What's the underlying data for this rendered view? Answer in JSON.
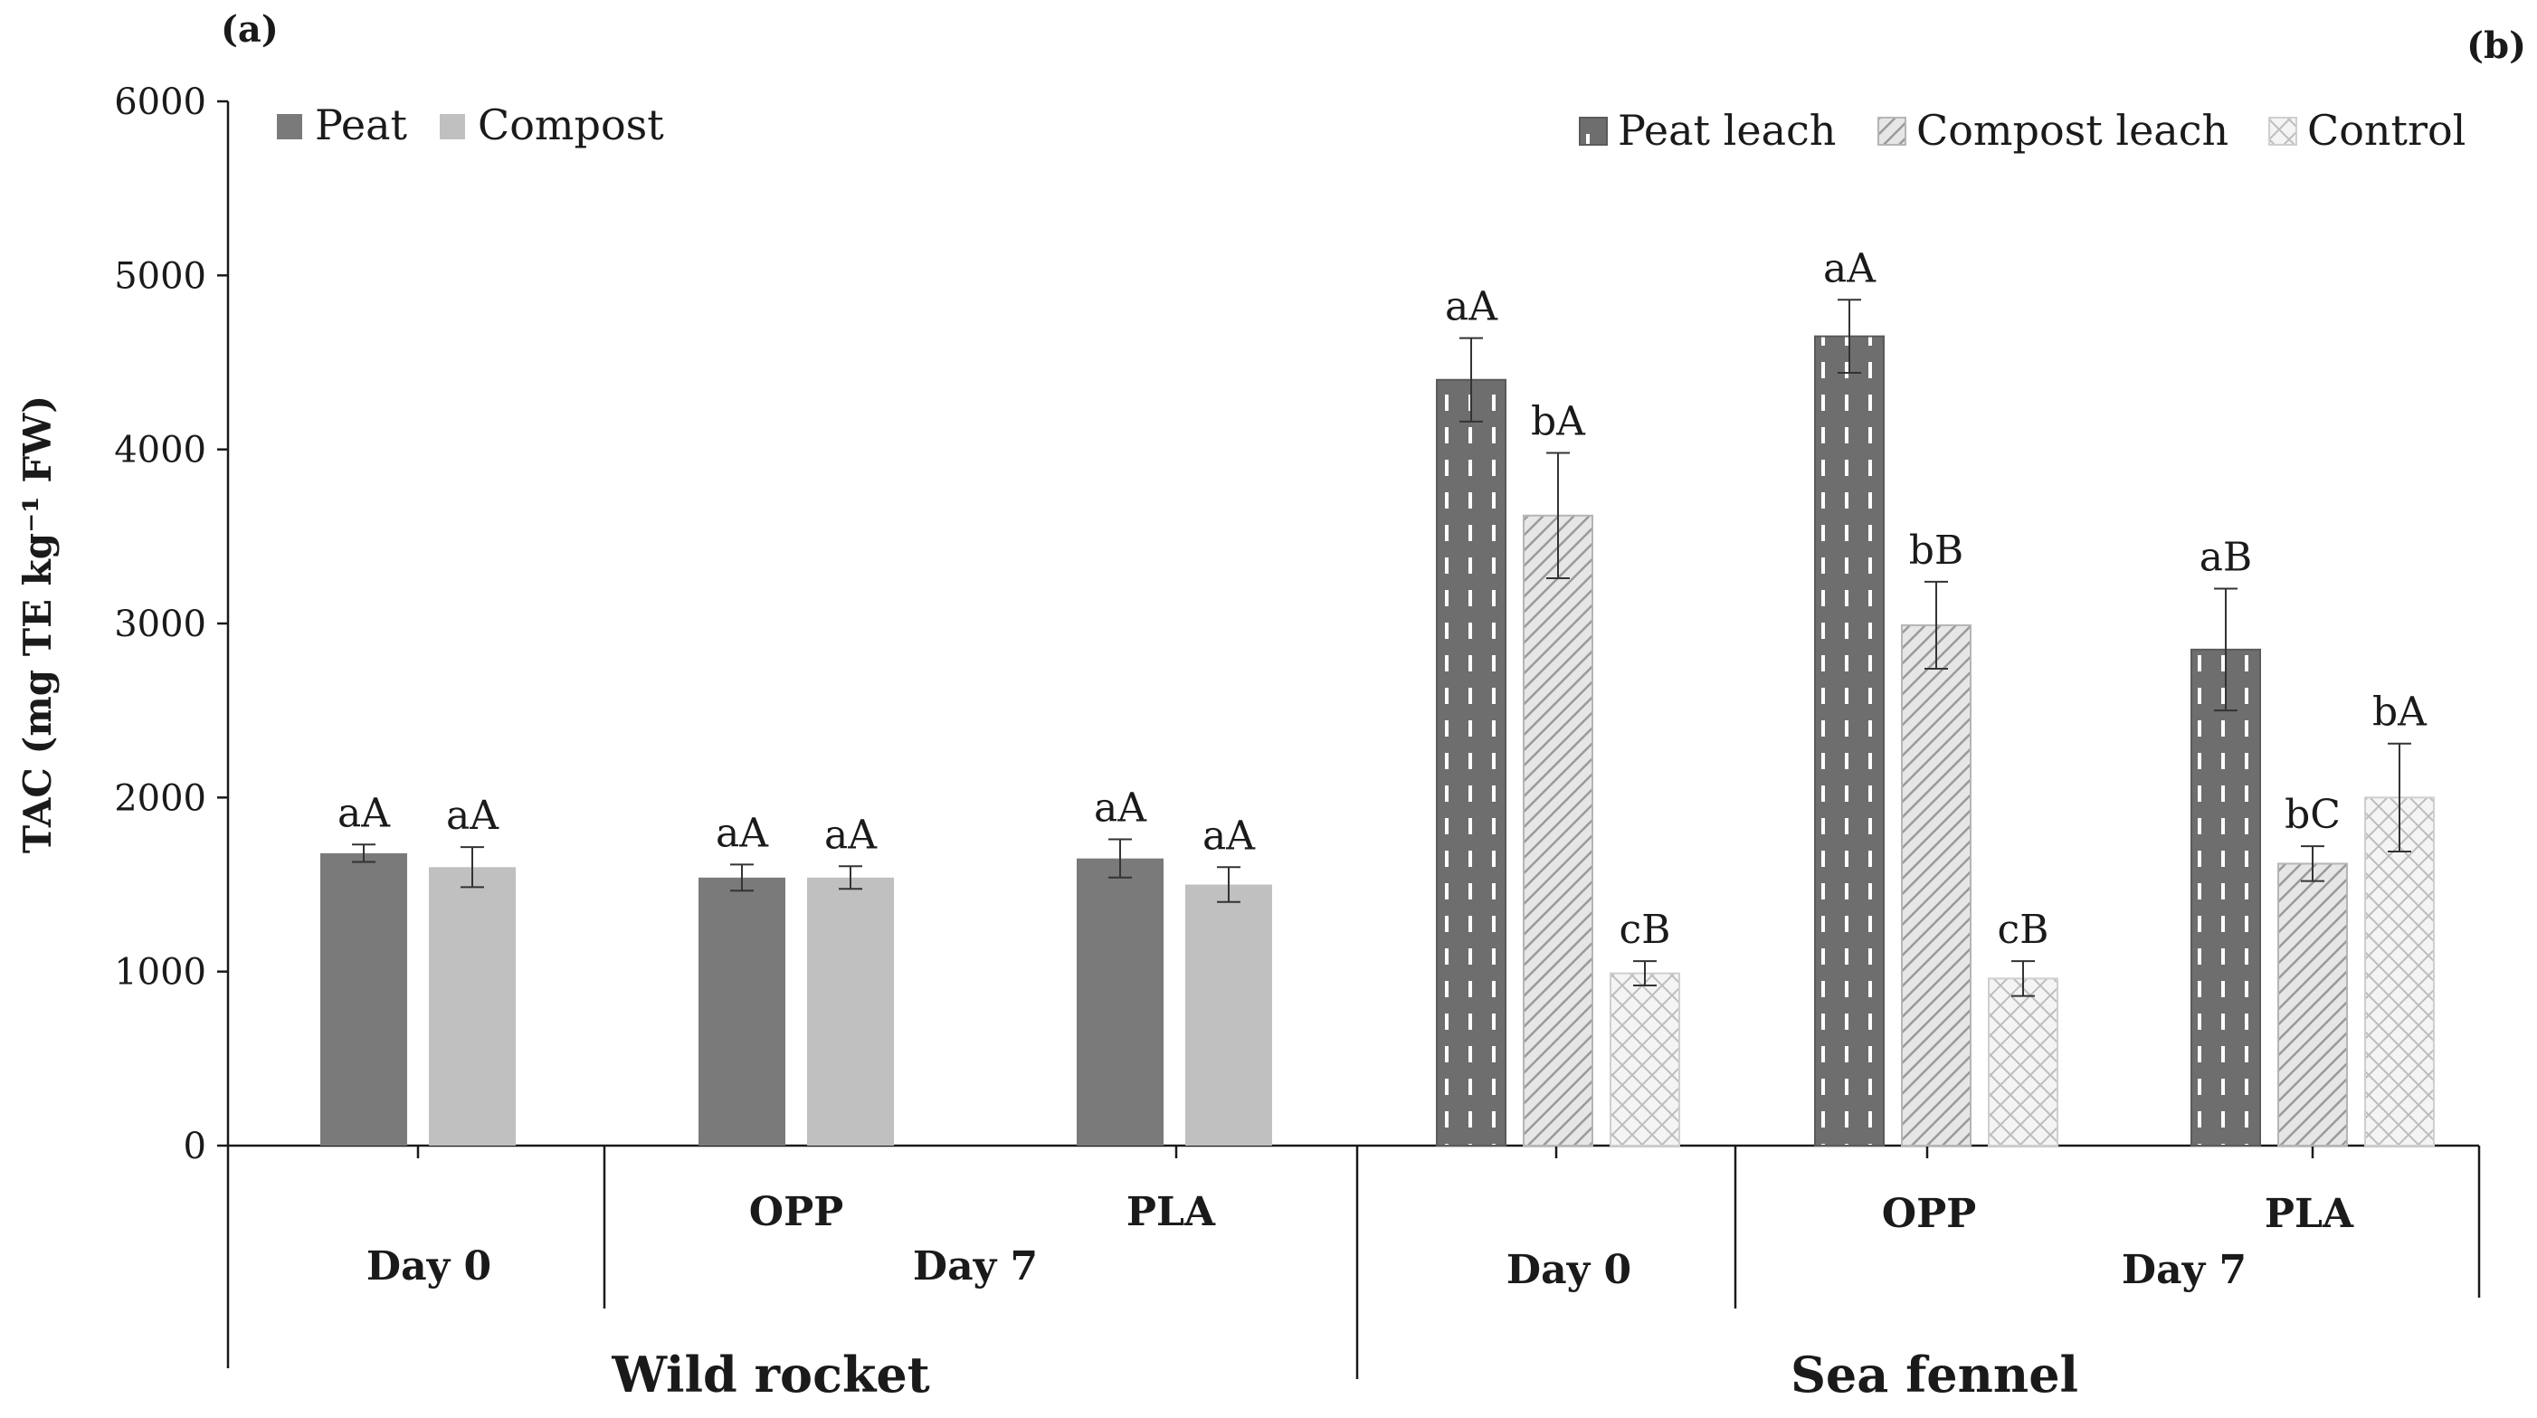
{
  "colors": {
    "peat": "#7a7a7a",
    "compost": "#c0c0c0",
    "peat_leach": "#6e6e6e",
    "compost_leach": "#c9c9c9",
    "control": "#d4d4d4",
    "axis": "#1a1a1a",
    "error_bar": "#333333"
  },
  "chart_data": [
    {
      "type": "bar",
      "panel_label": "(a)",
      "crop": "Wild rocket",
      "ylabel": "TAC (mg TE kg⁻¹ FW)",
      "ylim": [
        0,
        6000
      ],
      "yticks": [
        0,
        1000,
        2000,
        3000,
        4000,
        5000,
        6000
      ],
      "grid": false,
      "legend_position": "top-left",
      "groups": [
        {
          "day": "Day 0",
          "packaging": ""
        },
        {
          "day": "Day 7",
          "packaging": "OPP"
        },
        {
          "day": "Day 7",
          "packaging": "PLA"
        }
      ],
      "day7_label": "Day 7",
      "day0_label": "Day 0",
      "series": [
        {
          "name": "Peat",
          "pattern": "solid",
          "values": [
            1680,
            1540,
            1650
          ],
          "errors": [
            50,
            75,
            110
          ],
          "labels": [
            "aA",
            "aA",
            "aA"
          ]
        },
        {
          "name": "Compost",
          "pattern": "solid",
          "values": [
            1600,
            1540,
            1500
          ],
          "errors": [
            115,
            65,
            100
          ],
          "labels": [
            "aA",
            "aA",
            "aA"
          ]
        }
      ]
    },
    {
      "type": "bar",
      "panel_label": "(b)",
      "crop": "Sea fennel",
      "ylim": [
        0,
        6000
      ],
      "grid": false,
      "legend_position": "top-right",
      "groups": [
        {
          "day": "Day 0",
          "packaging": ""
        },
        {
          "day": "Day 7",
          "packaging": "OPP"
        },
        {
          "day": "Day 7",
          "packaging": "PLA"
        }
      ],
      "day7_label": "Day 7",
      "day0_label": "Day 0",
      "series": [
        {
          "name": "Peat leach",
          "pattern": "dashed-vertical",
          "values": [
            4400,
            4650,
            2850
          ],
          "errors": [
            240,
            210,
            350
          ],
          "labels": [
            "aA",
            "aA",
            "aB"
          ]
        },
        {
          "name": "Compost leach",
          "pattern": "diagonal",
          "values": [
            3620,
            2990,
            1620
          ],
          "errors": [
            360,
            250,
            100
          ],
          "labels": [
            "bA",
            "bB",
            "bC"
          ]
        },
        {
          "name": "Control",
          "pattern": "crosshatch",
          "values": [
            990,
            960,
            2000
          ],
          "errors": [
            70,
            100,
            310
          ],
          "labels": [
            "cB",
            "cB",
            "bA"
          ]
        }
      ]
    }
  ]
}
